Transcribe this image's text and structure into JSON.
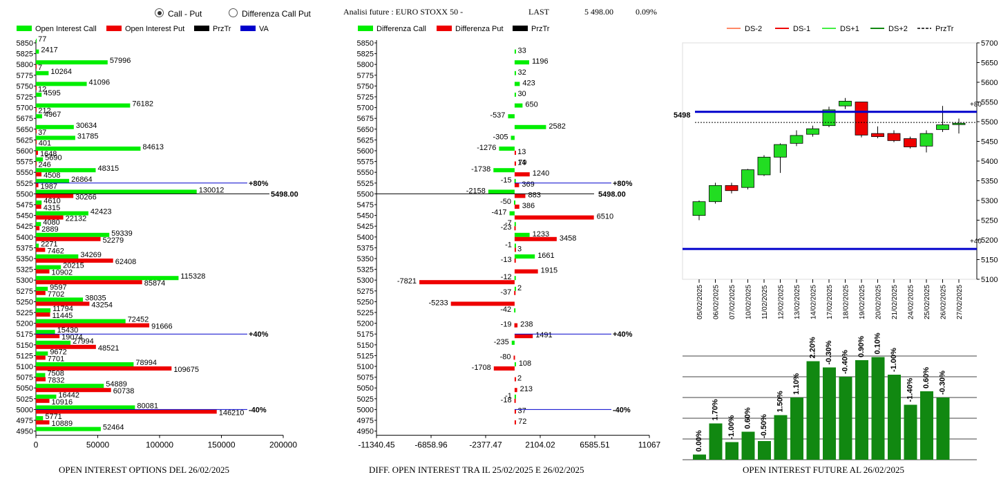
{
  "header": {
    "radio_call_put": "Call - Put",
    "radio_diff": "Differenza Call Put",
    "analysis_label": "Analisi future : EURO STOXX 50 -",
    "last_label": "LAST",
    "last_value": "5 498.00",
    "last_change": "0.09%"
  },
  "panel1": {
    "legend": [
      "Open Interest Call",
      "Open Interest Put",
      "PrzTr",
      "VA"
    ],
    "footer": "OPEN INTEREST OPTIONS DEL 26/02/2025"
  },
  "panel2": {
    "legend": [
      "Differenza Call",
      "Differenza Put",
      "PrzTr"
    ],
    "footer": "DIFF. OPEN INTEREST TRA IL 25/02/2025 E 26/02/2025"
  },
  "panel3": {
    "legend": [
      "DS-2",
      "DS-1",
      "DS+1",
      "DS+2",
      "PrzTr"
    ],
    "footer": "OPEN INTEREST FUTURE AL 26/02/2025"
  },
  "colors": {
    "call": "#00ee00",
    "put": "#ee0000",
    "va": "#0000cc",
    "candle_up": "#22dd22",
    "candle_down": "#ee0000",
    "bar_future": "#118811"
  },
  "chart_data": [
    {
      "type": "bar",
      "orientation": "horizontal",
      "strikes": [
        5850,
        5825,
        5800,
        5775,
        5750,
        5725,
        5700,
        5675,
        5650,
        5625,
        5600,
        5575,
        5550,
        5525,
        5500,
        5475,
        5450,
        5425,
        5400,
        5375,
        5350,
        5325,
        5300,
        5275,
        5250,
        5225,
        5200,
        5175,
        5150,
        5125,
        5100,
        5075,
        5050,
        5025,
        5000,
        4975,
        4950
      ],
      "series": [
        {
          "name": "Open Interest Call",
          "values": [
            77,
            2417,
            57996,
            10264,
            41096,
            4595,
            76182,
            4967,
            30634,
            31785,
            84613,
            5690,
            48315,
            26864,
            130012,
            4610,
            42423,
            4080,
            59339,
            2271,
            34269,
            20215,
            115328,
            9597,
            38035,
            11794,
            72452,
            15430,
            27994,
            9672,
            78994,
            7508,
            54889,
            16442,
            80081,
            5771,
            52464
          ]
        },
        {
          "name": "Open Interest Put",
          "values": [
            null,
            null,
            7,
            null,
            12,
            null,
            212,
            null,
            37,
            401,
            1648,
            246,
            4508,
            1987,
            30266,
            4315,
            22132,
            2889,
            52279,
            7462,
            62408,
            10902,
            85874,
            7702,
            43254,
            11445,
            91666,
            19074,
            48521,
            7701,
            109675,
            7832,
            60738,
            10916,
            146210,
            10889,
            null
          ]
        }
      ],
      "price_line": {
        "strike": 5500,
        "label": "5498.00"
      },
      "va_lines": [
        {
          "strike": 5525,
          "label": "+80%"
        },
        {
          "strike": 5175,
          "label": "+40%"
        },
        {
          "strike": 5000,
          "label": "-40%"
        }
      ],
      "x_ticks": [
        "0",
        "50000",
        "100000",
        "150000",
        "200000"
      ],
      "xlim": [
        0,
        200000
      ]
    },
    {
      "type": "bar",
      "orientation": "horizontal",
      "strikes": [
        5850,
        5825,
        5800,
        5775,
        5750,
        5725,
        5700,
        5675,
        5650,
        5625,
        5600,
        5575,
        5550,
        5525,
        5500,
        5475,
        5450,
        5425,
        5400,
        5375,
        5350,
        5325,
        5300,
        5275,
        5250,
        5225,
        5200,
        5175,
        5150,
        5125,
        5100,
        5075,
        5050,
        5025,
        5000,
        4975,
        4950
      ],
      "series": [
        {
          "name": "Differenza Call",
          "values": [
            33,
            1196,
            32,
            423,
            30,
            650,
            -537,
            2582,
            -305,
            -1276,
            -1738,
            -15,
            -2158,
            -50,
            -417,
            -7,
            1233,
            -1,
            1661,
            -12,
            2,
            -42,
            -235,
            108,
            -1
          ],
          "strikes": [
            5825,
            5800,
            5775,
            5750,
            5725,
            5700,
            5675,
            5650,
            5625,
            5600,
            5550,
            5525,
            5500,
            5475,
            5450,
            5425,
            5400,
            5375,
            5350,
            5300,
            5275,
            5225,
            5150,
            5100,
            5025
          ]
        },
        {
          "name": "Differenza Put",
          "values": [
            13,
            79,
            14,
            1240,
            369,
            883,
            386,
            6510,
            -23,
            3458,
            3,
            -13,
            1915,
            -7821,
            -37,
            -5233,
            -19,
            238,
            1491,
            -80,
            -1708,
            2,
            213,
            -18,
            37,
            72
          ],
          "strikes": [
            5600,
            5575,
            5575,
            5550,
            5525,
            5500,
            5475,
            5450,
            5425,
            5400,
            5375,
            5350,
            5325,
            5300,
            5275,
            5250,
            5200,
            5200,
            5175,
            5125,
            5100,
            5075,
            5050,
            5025,
            5000,
            4975
          ]
        }
      ],
      "price_line": {
        "strike": 5500,
        "label": "5498.00"
      },
      "va_lines": [
        {
          "strike": 5525,
          "label": "+80%"
        },
        {
          "strike": 5175,
          "label": "+40%"
        },
        {
          "strike": 5000,
          "label": "-40%"
        }
      ],
      "x_ticks": [
        "-11340.45",
        "-6858.96",
        "-2377.47",
        "2104.02",
        "6585.51",
        "11067"
      ],
      "xlim": [
        -11340.45,
        11067
      ]
    },
    {
      "type": "candlestick",
      "dates": [
        "05/02/2025",
        "06/02/2025",
        "07/02/2025",
        "10/02/2025",
        "11/02/2025",
        "12/02/2025",
        "13/02/2025",
        "14/02/2025",
        "17/02/2025",
        "18/02/2025",
        "19/02/2025",
        "20/02/2025",
        "21/02/2025",
        "24/02/2025",
        "25/02/2025",
        "26/02/2025",
        "27/02/2025"
      ],
      "ohlc": [
        [
          5262,
          5300,
          5250,
          5297
        ],
        [
          5297,
          5345,
          5292,
          5338
        ],
        [
          5338,
          5345,
          5318,
          5325
        ],
        [
          5333,
          5380,
          5328,
          5378
        ],
        [
          5365,
          5415,
          5362,
          5410
        ],
        [
          5410,
          5445,
          5370,
          5442
        ],
        [
          5445,
          5478,
          5438,
          5465
        ],
        [
          5468,
          5490,
          5462,
          5482
        ],
        [
          5490,
          5538,
          5486,
          5530
        ],
        [
          5540,
          5560,
          5532,
          5552
        ],
        [
          5550,
          5550,
          5460,
          5466
        ],
        [
          5470,
          5488,
          5458,
          5462
        ],
        [
          5470,
          5478,
          5448,
          5452
        ],
        [
          5457,
          5462,
          5432,
          5436
        ],
        [
          5438,
          5478,
          5422,
          5470
        ],
        [
          5480,
          5540,
          5474,
          5492
        ],
        [
          5494,
          5508,
          5470,
          5496
        ]
      ],
      "price_line": {
        "value": 5498,
        "label": "5498"
      },
      "va_lines": [
        {
          "value": 5525,
          "label": "+80"
        },
        {
          "value": 5177,
          "label": "+40"
        }
      ],
      "y_ticks": [
        "5700",
        "5650",
        "5600",
        "5550",
        "5500",
        "5450",
        "5400",
        "5350",
        "5300",
        "5250",
        "5200",
        "5150",
        "5100"
      ],
      "ylim": [
        5100,
        5700
      ]
    },
    {
      "type": "bar",
      "categories": [
        "05/02/2025",
        "06/02/2025",
        "07/02/2025",
        "10/02/2025",
        "11/02/2025",
        "12/02/2025",
        "13/02/2025",
        "14/02/2025",
        "17/02/2025",
        "18/02/2025",
        "19/02/2025",
        "20/02/2025",
        "21/02/2025",
        "24/02/2025",
        "25/02/2025",
        "26/02/2025"
      ],
      "values": [
        0.05,
        0.35,
        0.17,
        0.27,
        0.18,
        0.43,
        0.6,
        0.95,
        0.89,
        0.8,
        0.96,
        0.99,
        0.82,
        0.53,
        0.66,
        0.6
      ],
      "labels": [
        "0.00%",
        "1.70%",
        "-1.00%",
        "0.60%",
        "-0.50%",
        "1.50%",
        "1.10%",
        "2.20%",
        "-0.30%",
        "-0.40%",
        "0.90%",
        "0.10%",
        "-1.00%",
        "-1.40%",
        "0.60%",
        "-0.30%"
      ]
    }
  ]
}
